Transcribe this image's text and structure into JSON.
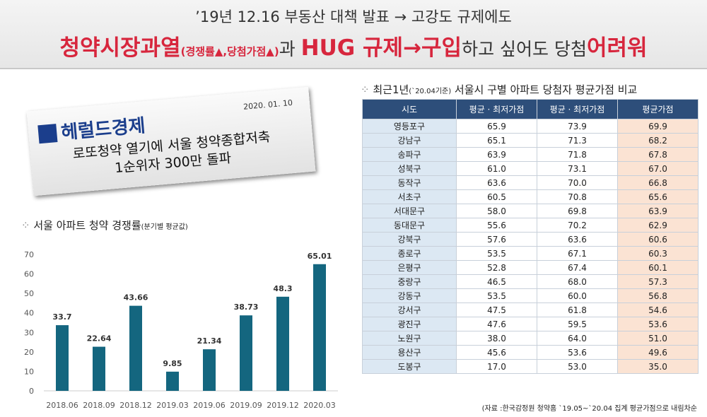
{
  "header": {
    "line1": "’19년 12.16 부동산 대책 발표 → 고강도 규제에도",
    "line2": [
      {
        "text": "청약시장과열",
        "style": "red"
      },
      {
        "text": "(경쟁률▲,당첨가점▲)",
        "style": "red-small"
      },
      {
        "text": "과 ",
        "style": "dark"
      },
      {
        "text": "HUG 규제→구입",
        "style": "red"
      },
      {
        "text": "하고 싶어도 당첨",
        "style": "dark"
      },
      {
        "text": "어려워",
        "style": "red"
      }
    ]
  },
  "news": {
    "logo": "헤럴드경제",
    "date": "2020. 01. 10",
    "headline": [
      "로또청약 열기에 서울 청약종합저축",
      "1순위자 300만 돌파"
    ]
  },
  "chart_data": {
    "type": "bar",
    "title": "서울 아파트 청약 경쟁률",
    "subtitle": "(분기별 평균값)",
    "categories": [
      "2018.06",
      "2018.09",
      "2018.12",
      "2019.03",
      "2019.06",
      "2019.09",
      "2019.12",
      "2020.03"
    ],
    "values": [
      33.7,
      22.64,
      43.66,
      9.85,
      21.34,
      38.73,
      48.3,
      65.01
    ],
    "color": "#14667f",
    "ylim": [
      0,
      70
    ],
    "yticks": [
      0,
      10,
      20,
      30,
      40,
      50,
      60,
      70
    ],
    "grid": false
  },
  "table": {
    "title": "최근1년",
    "title_note": "(`20.04기준)",
    "title_rest": " 서울시 구별 아파트 당첨자 평균가점 비교",
    "columns": [
      "시도",
      "평균 · 최저가점",
      "평균 · 최저가점",
      "평균가점"
    ],
    "rows": [
      [
        "영등포구",
        "65.9",
        "73.9",
        "69.9"
      ],
      [
        "강남구",
        "65.1",
        "71.3",
        "68.2"
      ],
      [
        "송파구",
        "63.9",
        "71.8",
        "67.8"
      ],
      [
        "성북구",
        "61.0",
        "73.1",
        "67.0"
      ],
      [
        "동작구",
        "63.6",
        "70.0",
        "66.8"
      ],
      [
        "서초구",
        "60.5",
        "70.8",
        "65.6"
      ],
      [
        "서대문구",
        "58.0",
        "69.8",
        "63.9"
      ],
      [
        "동대문구",
        "55.6",
        "70.2",
        "62.9"
      ],
      [
        "강북구",
        "57.6",
        "63.6",
        "60.6"
      ],
      [
        "종로구",
        "53.5",
        "67.1",
        "60.3"
      ],
      [
        "은평구",
        "52.8",
        "67.4",
        "60.1"
      ],
      [
        "중랑구",
        "46.5",
        "68.0",
        "57.3"
      ],
      [
        "강동구",
        "53.5",
        "60.0",
        "56.8"
      ],
      [
        "강서구",
        "47.5",
        "61.8",
        "54.6"
      ],
      [
        "광진구",
        "47.6",
        "59.5",
        "53.6"
      ],
      [
        "노원구",
        "38.0",
        "64.0",
        "51.0"
      ],
      [
        "용산구",
        "45.6",
        "53.6",
        "49.6"
      ],
      [
        "도봉구",
        "17.0",
        "53.0",
        "35.0"
      ]
    ],
    "source": "(자료 :한국감정원 청약홈 `19.05~`20.04 집계 평균가점으로 내림차순"
  }
}
